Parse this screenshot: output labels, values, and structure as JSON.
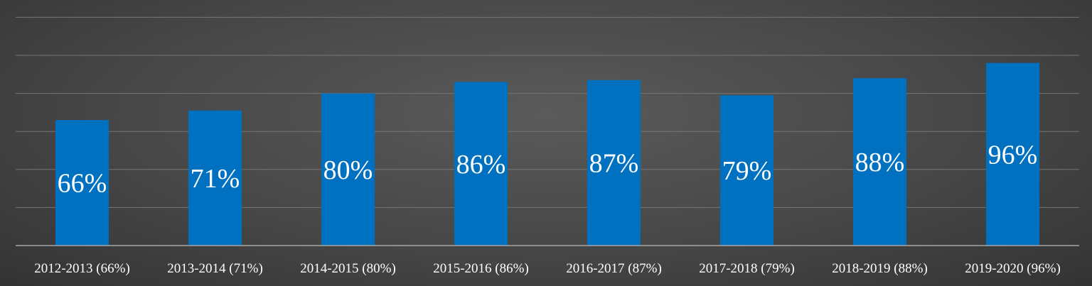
{
  "chart_data": {
    "type": "bar",
    "title": "",
    "xlabel": "",
    "ylabel": "",
    "categories": [
      "2012-2013 (66%)",
      "2013-2014 (71%)",
      "2014-2015 (80%)",
      "2015-2016 (86%)",
      "2016-2017 (87%)",
      "2017-2018 (79%)",
      "2018-2019 (88%)",
      "2019-2020 (96%)"
    ],
    "values": [
      66,
      71,
      80,
      86,
      87,
      79,
      88,
      96
    ],
    "data_labels": [
      "66%",
      "71%",
      "80%",
      "86%",
      "87%",
      "79%",
      "88%",
      "96%"
    ],
    "ylim": [
      0,
      120
    ],
    "grid": true,
    "legend": "none",
    "colors": {
      "bar": "#0070c0",
      "gridline": "#767676",
      "axis": "#a6a6a6",
      "text": "#ffffff"
    }
  }
}
